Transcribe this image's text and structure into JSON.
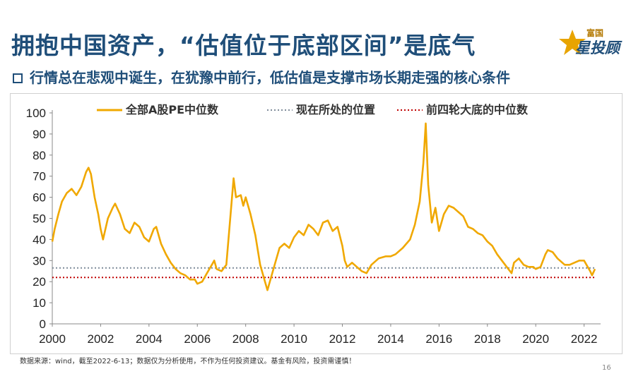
{
  "header": {
    "title": "拥抱中国资产，“估值位于底部区间”是底气",
    "subtitle": "行情总在悲观中诞生，在犹豫中前行，低估值是支撑市场长期走强的核心条件",
    "logo_small": "富国",
    "logo_big": "星投顾"
  },
  "footer": {
    "source_note": "数据来源：wind，截至2022-6-13；数据仅为分析使用，不作为任何投资建议。基金有风险，投资需谨慎！",
    "page_number": "16"
  },
  "chart_data": {
    "type": "line",
    "title": "",
    "xlabel": "",
    "ylabel": "",
    "xlim": [
      2000,
      2022.45
    ],
    "ylim": [
      0,
      100
    ],
    "x_ticks": [
      2000,
      2002,
      2004,
      2006,
      2008,
      2010,
      2012,
      2014,
      2016,
      2018,
      2020,
      2022
    ],
    "y_ticks": [
      0,
      10,
      20,
      30,
      40,
      50,
      60,
      70,
      80,
      90,
      100
    ],
    "grid": false,
    "legend_position": "top",
    "colors": {
      "series": "#f0a800",
      "current": "#7f8c9a",
      "historical": "#c00000"
    },
    "series": [
      {
        "name": "全部A股PE中位数",
        "style": "solid",
        "points": [
          [
            2000.0,
            39
          ],
          [
            2000.1,
            45
          ],
          [
            2000.25,
            52
          ],
          [
            2000.4,
            58
          ],
          [
            2000.6,
            62
          ],
          [
            2000.8,
            64
          ],
          [
            2001.0,
            61
          ],
          [
            2001.2,
            65
          ],
          [
            2001.4,
            72
          ],
          [
            2001.5,
            74
          ],
          [
            2001.6,
            71
          ],
          [
            2001.75,
            60
          ],
          [
            2001.9,
            52
          ],
          [
            2002.0,
            45
          ],
          [
            2002.1,
            40
          ],
          [
            2002.3,
            50
          ],
          [
            2002.5,
            55
          ],
          [
            2002.6,
            57
          ],
          [
            2002.8,
            52
          ],
          [
            2003.0,
            45
          ],
          [
            2003.2,
            43
          ],
          [
            2003.4,
            48
          ],
          [
            2003.6,
            46
          ],
          [
            2003.8,
            41
          ],
          [
            2004.0,
            39
          ],
          [
            2004.2,
            45
          ],
          [
            2004.3,
            46
          ],
          [
            2004.5,
            38
          ],
          [
            2004.7,
            33
          ],
          [
            2004.9,
            29
          ],
          [
            2005.1,
            26
          ],
          [
            2005.3,
            24
          ],
          [
            2005.5,
            23
          ],
          [
            2005.7,
            21
          ],
          [
            2005.9,
            21
          ],
          [
            2006.0,
            19
          ],
          [
            2006.2,
            20
          ],
          [
            2006.4,
            24
          ],
          [
            2006.6,
            28
          ],
          [
            2006.7,
            30
          ],
          [
            2006.8,
            26
          ],
          [
            2007.0,
            25
          ],
          [
            2007.2,
            28
          ],
          [
            2007.4,
            55
          ],
          [
            2007.5,
            69
          ],
          [
            2007.6,
            60
          ],
          [
            2007.8,
            61
          ],
          [
            2007.9,
            56
          ],
          [
            2008.0,
            60
          ],
          [
            2008.2,
            52
          ],
          [
            2008.4,
            42
          ],
          [
            2008.6,
            28
          ],
          [
            2008.8,
            20
          ],
          [
            2008.9,
            16
          ],
          [
            2009.0,
            20
          ],
          [
            2009.2,
            28
          ],
          [
            2009.4,
            36
          ],
          [
            2009.6,
            38
          ],
          [
            2009.8,
            36
          ],
          [
            2010.0,
            41
          ],
          [
            2010.2,
            44
          ],
          [
            2010.4,
            42
          ],
          [
            2010.6,
            47
          ],
          [
            2010.8,
            45
          ],
          [
            2011.0,
            42
          ],
          [
            2011.2,
            48
          ],
          [
            2011.4,
            49
          ],
          [
            2011.6,
            44
          ],
          [
            2011.8,
            46
          ],
          [
            2012.0,
            37
          ],
          [
            2012.1,
            30
          ],
          [
            2012.2,
            27
          ],
          [
            2012.4,
            29
          ],
          [
            2012.6,
            27
          ],
          [
            2012.8,
            25
          ],
          [
            2013.0,
            24
          ],
          [
            2013.2,
            28
          ],
          [
            2013.5,
            31
          ],
          [
            2013.8,
            32
          ],
          [
            2014.0,
            32
          ],
          [
            2014.2,
            33
          ],
          [
            2014.5,
            36
          ],
          [
            2014.8,
            40
          ],
          [
            2015.0,
            47
          ],
          [
            2015.2,
            58
          ],
          [
            2015.35,
            76
          ],
          [
            2015.45,
            95
          ],
          [
            2015.55,
            66
          ],
          [
            2015.7,
            48
          ],
          [
            2015.85,
            55
          ],
          [
            2016.0,
            44
          ],
          [
            2016.2,
            52
          ],
          [
            2016.4,
            56
          ],
          [
            2016.6,
            55
          ],
          [
            2016.8,
            53
          ],
          [
            2017.0,
            51
          ],
          [
            2017.2,
            46
          ],
          [
            2017.4,
            45
          ],
          [
            2017.6,
            43
          ],
          [
            2017.8,
            42
          ],
          [
            2018.0,
            39
          ],
          [
            2018.2,
            37
          ],
          [
            2018.4,
            33
          ],
          [
            2018.6,
            30
          ],
          [
            2018.8,
            27
          ],
          [
            2019.0,
            24
          ],
          [
            2019.1,
            29
          ],
          [
            2019.3,
            31
          ],
          [
            2019.5,
            28
          ],
          [
            2019.7,
            27
          ],
          [
            2019.9,
            27
          ],
          [
            2020.0,
            26
          ],
          [
            2020.2,
            27
          ],
          [
            2020.4,
            33
          ],
          [
            2020.5,
            35
          ],
          [
            2020.7,
            34
          ],
          [
            2020.9,
            31
          ],
          [
            2021.0,
            30
          ],
          [
            2021.2,
            28
          ],
          [
            2021.4,
            28
          ],
          [
            2021.6,
            29
          ],
          [
            2021.8,
            30
          ],
          [
            2022.0,
            30
          ],
          [
            2022.1,
            28
          ],
          [
            2022.25,
            25
          ],
          [
            2022.33,
            23
          ],
          [
            2022.45,
            26
          ]
        ]
      },
      {
        "name": "现在所处的位置",
        "style": "dotted",
        "value": 26.5
      },
      {
        "name": "前四轮大底的中位数",
        "style": "dotted",
        "value": 22
      }
    ]
  }
}
